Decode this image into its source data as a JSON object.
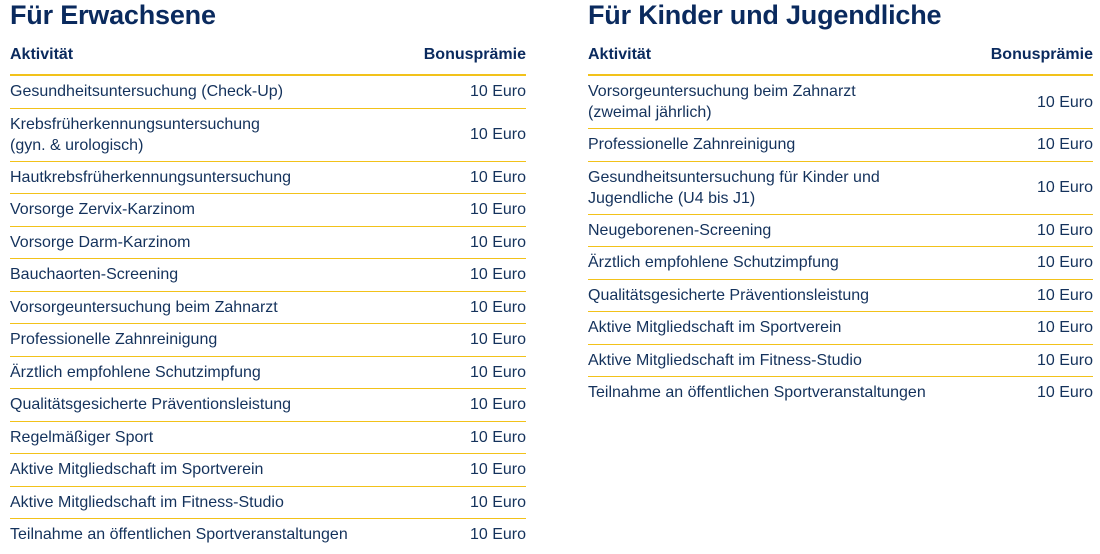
{
  "adults": {
    "title": "Für Erwachsene",
    "header_activity": "Aktivität",
    "header_bonus": "Bonusprämie",
    "rows": [
      {
        "activity": "Gesundheitsuntersuchung (Check-Up)",
        "bonus": "10 Euro"
      },
      {
        "activity": "Krebsfrüherkennungsuntersuchung",
        "activity_line2": "(gyn. & urologisch)",
        "bonus": "10 Euro"
      },
      {
        "activity": "Hautkrebsfrüherkennungsuntersuchung",
        "bonus": "10 Euro"
      },
      {
        "activity": "Vorsorge Zervix-Karzinom",
        "bonus": "10 Euro"
      },
      {
        "activity": "Vorsorge Darm-Karzinom",
        "bonus": "10 Euro"
      },
      {
        "activity": "Bauchaorten-Screening",
        "bonus": "10 Euro"
      },
      {
        "activity": "Vorsorgeuntersuchung beim Zahnarzt",
        "bonus": "10 Euro"
      },
      {
        "activity": "Professionelle Zahnreinigung",
        "bonus": "10 Euro"
      },
      {
        "activity": "Ärztlich empfohlene Schutzimpfung",
        "bonus": "10 Euro"
      },
      {
        "activity": "Qualitätsgesicherte Präventionsleistung",
        "bonus": "10 Euro"
      },
      {
        "activity": "Regelmäßiger Sport",
        "bonus": "10 Euro"
      },
      {
        "activity": "Aktive Mitgliedschaft im Sportverein",
        "bonus": "10 Euro"
      },
      {
        "activity": "Aktive Mitgliedschaft im Fitness-Studio",
        "bonus": "10 Euro"
      },
      {
        "activity": "Teilnahme an öffentlichen Sportveranstaltungen",
        "bonus": "10 Euro"
      }
    ]
  },
  "kids": {
    "title": "Für Kinder und Jugendliche",
    "header_activity": "Aktivität",
    "header_bonus": "Bonusprämie",
    "rows": [
      {
        "activity": "Vorsorgeuntersuchung beim Zahnarzt",
        "activity_line2": "(zweimal jährlich)",
        "bonus": "10 Euro"
      },
      {
        "activity": "Professionelle Zahnreinigung",
        "bonus": "10 Euro"
      },
      {
        "activity": "Gesundheitsuntersuchung für Kinder und",
        "activity_line2": "Jugendliche (U4 bis J1)",
        "bonus": "10 Euro"
      },
      {
        "activity": "Neugeborenen-Screening",
        "bonus": "10 Euro"
      },
      {
        "activity": "Ärztlich empfohlene Schutzimpfung",
        "bonus": "10 Euro"
      },
      {
        "activity": "Qualitätsgesicherte Präventionsleistung",
        "bonus": "10 Euro"
      },
      {
        "activity": "Aktive Mitgliedschaft im Sportverein",
        "bonus": "10 Euro"
      },
      {
        "activity": "Aktive Mitgliedschaft im Fitness-Studio",
        "bonus": "10 Euro"
      },
      {
        "activity": "Teilnahme an öffentlichen Sportveranstaltungen",
        "bonus": "10 Euro"
      }
    ]
  },
  "colors": {
    "heading": "#0a2a5e",
    "text": "#14325c",
    "divider": "#f2c21a"
  }
}
